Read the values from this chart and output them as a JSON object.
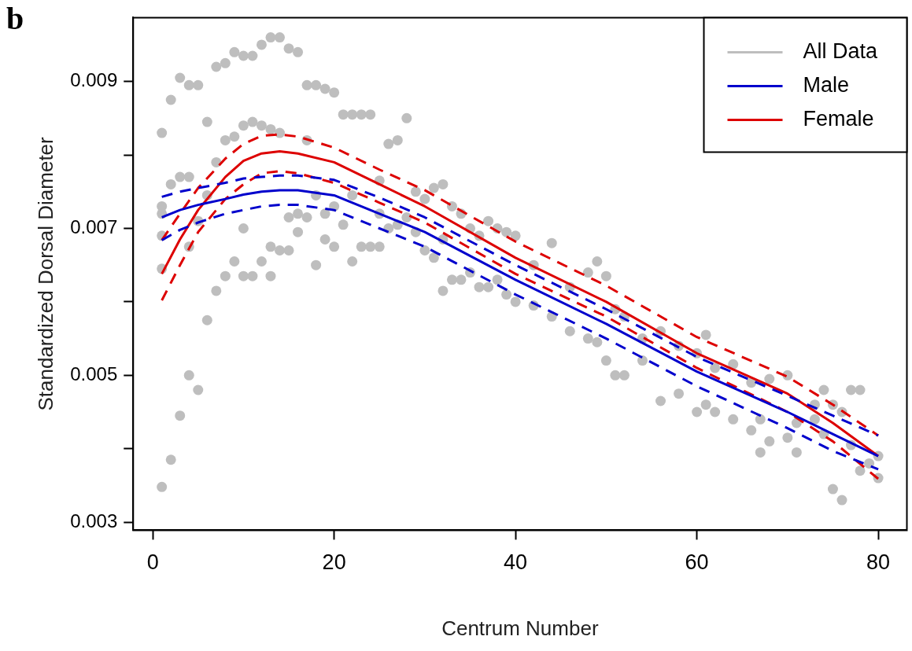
{
  "chart_data": {
    "type": "line",
    "xlabel": "Centrum Number",
    "ylabel": "Standardized Dorsal Diameter",
    "annotations": [
      "b"
    ],
    "legend": "top right",
    "grid": false,
    "xlim": [
      -2.16,
      83.16
    ],
    "xticks": [
      0,
      20,
      40,
      60,
      80
    ],
    "ylim": [
      0.00289,
      0.00987
    ],
    "yticks": [
      0.003,
      {
        "value": 0.004,
        "label": null
      },
      0.005,
      {
        "value": 0.006,
        "label": null
      },
      0.007,
      {
        "value": 0.008,
        "label": null
      },
      0.009
    ],
    "series": [
      {
        "name": "All Data",
        "type": "scatter",
        "marker": "circle",
        "color": "#bebebe",
        "x": [
          1,
          1,
          1,
          1,
          1,
          1,
          2,
          2,
          2,
          3,
          3,
          3,
          4,
          4,
          4,
          4,
          5,
          5,
          5,
          6,
          6,
          6,
          7,
          7,
          7,
          8,
          8,
          8,
          9,
          9,
          9,
          10,
          10,
          10,
          10,
          11,
          11,
          11,
          12,
          12,
          12,
          13,
          13,
          13,
          13,
          14,
          14,
          14,
          15,
          15,
          15,
          16,
          16,
          16,
          17,
          17,
          17,
          18,
          18,
          18,
          19,
          19,
          19,
          20,
          20,
          20,
          21,
          21,
          22,
          22,
          22,
          23,
          23,
          24,
          24,
          25,
          25,
          25,
          26,
          26,
          27,
          27,
          28,
          28,
          29,
          29,
          30,
          30,
          31,
          31,
          32,
          32,
          32,
          33,
          33,
          34,
          34,
          35,
          35,
          36,
          36,
          37,
          37,
          38,
          38,
          39,
          39,
          40,
          40,
          42,
          42,
          44,
          44,
          46,
          46,
          48,
          48,
          49,
          49,
          50,
          50,
          51,
          51,
          52,
          52,
          54,
          54,
          56,
          56,
          58,
          58,
          60,
          60,
          61,
          61,
          62,
          62,
          64,
          64,
          66,
          66,
          67,
          67,
          68,
          68,
          70,
          70,
          71,
          71,
          73,
          73,
          74,
          74,
          75,
          75,
          76,
          76,
          77,
          77,
          78,
          78,
          79,
          80,
          80
        ],
        "values": [
          0.00348,
          0.00645,
          0.0069,
          0.0072,
          0.0073,
          0.0083,
          0.00385,
          0.0076,
          0.00875,
          0.00445,
          0.00905,
          0.0077,
          0.005,
          0.00895,
          0.0077,
          0.00675,
          0.0048,
          0.00895,
          0.0071,
          0.00575,
          0.00845,
          0.00745,
          0.00615,
          0.0092,
          0.0079,
          0.00635,
          0.00925,
          0.0082,
          0.00655,
          0.0094,
          0.00825,
          0.00635,
          0.00935,
          0.0084,
          0.007,
          0.00635,
          0.00935,
          0.00845,
          0.00655,
          0.0095,
          0.0084,
          0.0096,
          0.00635,
          0.00835,
          0.00675,
          0.0096,
          0.0067,
          0.0083,
          0.00945,
          0.0067,
          0.00715,
          0.0094,
          0.00695,
          0.0072,
          0.00895,
          0.00715,
          0.0082,
          0.00895,
          0.0065,
          0.00745,
          0.0089,
          0.00685,
          0.0072,
          0.00885,
          0.00675,
          0.0073,
          0.00855,
          0.00705,
          0.00855,
          0.00655,
          0.00745,
          0.00855,
          0.00675,
          0.00855,
          0.00675,
          0.00765,
          0.00675,
          0.0072,
          0.00815,
          0.007,
          0.0082,
          0.00705,
          0.0085,
          0.00715,
          0.0075,
          0.00695,
          0.0074,
          0.0067,
          0.00755,
          0.0066,
          0.0076,
          0.00615,
          0.00685,
          0.0073,
          0.0063,
          0.0072,
          0.0063,
          0.007,
          0.0064,
          0.0069,
          0.0062,
          0.0071,
          0.0062,
          0.007,
          0.0063,
          0.00695,
          0.0061,
          0.0069,
          0.006,
          0.0065,
          0.00595,
          0.0068,
          0.0058,
          0.0062,
          0.0056,
          0.0064,
          0.0055,
          0.00655,
          0.00545,
          0.00635,
          0.0052,
          0.0059,
          0.005,
          0.005,
          0.0058,
          0.0055,
          0.0052,
          0.0056,
          0.00465,
          0.0054,
          0.00475,
          0.0053,
          0.0045,
          0.00555,
          0.0046,
          0.0051,
          0.0045,
          0.00515,
          0.0044,
          0.0049,
          0.00425,
          0.00395,
          0.0044,
          0.00495,
          0.0041,
          0.005,
          0.00415,
          0.00395,
          0.00435,
          0.0044,
          0.0046,
          0.0048,
          0.0042,
          0.00345,
          0.0046,
          0.0033,
          0.0045,
          0.0048,
          0.00405,
          0.0048,
          0.0037,
          0.0038,
          0.0036,
          0.0039
        ]
      },
      {
        "name": "Male",
        "marker": "none",
        "line_style": "solid",
        "color": "#0000cc",
        "x": [
          1,
          3,
          5,
          8,
          10,
          12,
          14,
          16,
          20,
          25,
          30,
          40,
          50,
          60,
          70,
          75,
          80
        ],
        "values": [
          0.00715,
          0.00725,
          0.00732,
          0.0074,
          0.00746,
          0.0075,
          0.00752,
          0.00752,
          0.00745,
          0.0072,
          0.00695,
          0.0063,
          0.0057,
          0.00505,
          0.0045,
          0.0042,
          0.0039
        ]
      },
      {
        "marker": "none",
        "line_style": "dashed",
        "color": "#0000cc",
        "x": [
          1,
          3,
          5,
          8,
          10,
          12,
          14,
          16,
          20,
          25,
          30,
          40,
          50,
          60,
          70,
          75,
          80
        ],
        "values": [
          0.00684,
          0.00698,
          0.00708,
          0.0072,
          0.00725,
          0.0073,
          0.00732,
          0.00732,
          0.00725,
          0.007,
          0.00675,
          0.0061,
          0.0055,
          0.00485,
          0.00428,
          0.00397,
          0.00372
        ]
      },
      {
        "marker": "none",
        "line_style": "dashed",
        "color": "#0000cc",
        "x": [
          1,
          3,
          5,
          8,
          10,
          12,
          14,
          16,
          20,
          25,
          30,
          40,
          50,
          60,
          70,
          75,
          80
        ],
        "values": [
          0.00743,
          0.0075,
          0.00755,
          0.00762,
          0.00768,
          0.0077,
          0.00772,
          0.00772,
          0.00766,
          0.00742,
          0.00715,
          0.0065,
          0.0059,
          0.00525,
          0.00472,
          0.00445,
          0.00418
        ]
      },
      {
        "name": "Female",
        "marker": "none",
        "line_style": "solid",
        "color": "#dd0000",
        "x": [
          1,
          3,
          5,
          8,
          10,
          12,
          14,
          16,
          20,
          25,
          30,
          40,
          50,
          60,
          70,
          75,
          80
        ],
        "values": [
          0.00638,
          0.00685,
          0.00725,
          0.0077,
          0.00792,
          0.00802,
          0.00805,
          0.00802,
          0.0079,
          0.0076,
          0.0073,
          0.0066,
          0.006,
          0.0053,
          0.00475,
          0.00435,
          0.0039
        ]
      },
      {
        "marker": "none",
        "line_style": "dashed",
        "color": "#dd0000",
        "x": [
          1,
          3,
          5,
          8,
          10,
          12,
          14,
          16,
          20,
          25,
          30,
          40,
          50,
          60,
          70,
          75,
          80
        ],
        "values": [
          0.00602,
          0.0065,
          0.00695,
          0.0074,
          0.0076,
          0.00775,
          0.00778,
          0.00775,
          0.00762,
          0.00735,
          0.00708,
          0.00638,
          0.0058,
          0.0051,
          0.0045,
          0.0041,
          0.00359
        ]
      },
      {
        "marker": "none",
        "line_style": "dashed",
        "color": "#dd0000",
        "x": [
          1,
          3,
          5,
          8,
          10,
          12,
          14,
          16,
          20,
          25,
          30,
          40,
          50,
          60,
          70,
          75,
          80
        ],
        "values": [
          0.00684,
          0.0072,
          0.00755,
          0.00795,
          0.00815,
          0.00826,
          0.00828,
          0.00825,
          0.0081,
          0.0078,
          0.00752,
          0.00682,
          0.00622,
          0.00552,
          0.00498,
          0.0046,
          0.00418
        ]
      }
    ]
  }
}
